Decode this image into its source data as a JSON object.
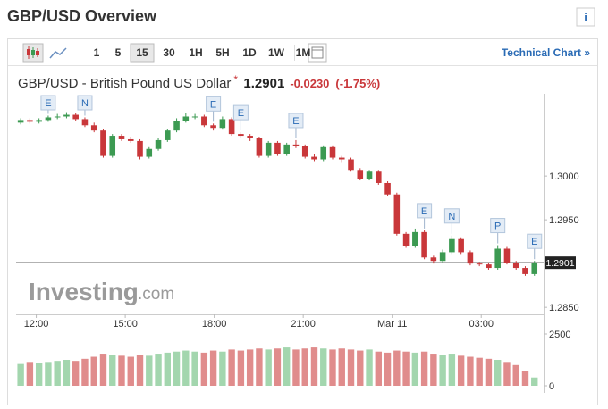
{
  "header": {
    "title": "GBP/USD Overview",
    "info": "i"
  },
  "toolbar": {
    "intervals": [
      "1",
      "5",
      "15",
      "30",
      "1H",
      "5H",
      "1D",
      "1W",
      "1M"
    ],
    "active": "15",
    "link": "Technical Chart »"
  },
  "quote": {
    "name": "GBP/USD - British Pound US Dollar",
    "price": "1.2901",
    "change": "-0.0230",
    "change_pct": "(-1.75%)"
  },
  "watermark": {
    "brand": "Investing",
    "suffix": ".com"
  },
  "chart_data": {
    "type": "candlestick",
    "open": [
      1.3061,
      1.3064,
      1.3062,
      1.3064,
      1.3067,
      1.3068,
      1.307,
      1.3065,
      1.3058,
      1.3052,
      1.3023,
      1.3046,
      1.3042,
      1.304,
      1.3022,
      1.3031,
      1.3041,
      1.3052,
      1.3063,
      1.3068,
      1.3068,
      1.3058,
      1.3055,
      1.3065,
      1.3048,
      1.3046,
      1.3043,
      1.3023,
      1.3038,
      1.3025,
      1.3036,
      1.3034,
      1.3022,
      1.3019,
      1.3033,
      1.3021,
      1.3019,
      1.3007,
      1.2997,
      1.3005,
      1.2992,
      1.2979,
      1.2934,
      1.292,
      1.2936,
      1.2907,
      1.2903,
      1.2913,
      1.2928,
      1.2913,
      1.29,
      1.2899,
      1.2895,
      1.2917,
      1.2901,
      1.2895,
      1.2888
    ],
    "high": [
      1.3066,
      1.3066,
      1.3066,
      1.3069,
      1.3071,
      1.3073,
      1.3072,
      1.3067,
      1.3061,
      1.3054,
      1.3048,
      1.3048,
      1.3045,
      1.3042,
      1.3033,
      1.3043,
      1.3054,
      1.3066,
      1.3072,
      1.3071,
      1.307,
      1.306,
      1.3068,
      1.3067,
      1.305,
      1.3048,
      1.3045,
      1.304,
      1.304,
      1.3038,
      1.3041,
      1.3036,
      1.3025,
      1.3035,
      1.3035,
      1.3023,
      1.3021,
      1.3009,
      1.3007,
      1.3007,
      1.2994,
      1.2981,
      1.2936,
      1.294,
      1.2938,
      1.2909,
      1.2916,
      1.2932,
      1.293,
      1.2915,
      1.2902,
      1.2901,
      1.2921,
      1.2919,
      1.2903,
      1.2897,
      1.2903
    ],
    "low": [
      1.3059,
      1.306,
      1.306,
      1.3062,
      1.3065,
      1.3066,
      1.3063,
      1.3056,
      1.305,
      1.3021,
      1.3021,
      1.304,
      1.3038,
      1.3019,
      1.302,
      1.3029,
      1.3039,
      1.305,
      1.3061,
      1.3065,
      1.3056,
      1.3052,
      1.3053,
      1.3046,
      1.3043,
      1.304,
      1.3021,
      1.3021,
      1.3023,
      1.3023,
      1.3032,
      1.302,
      1.3017,
      1.3017,
      1.3019,
      1.3016,
      1.3005,
      1.2995,
      1.2995,
      1.299,
      1.2977,
      1.2932,
      1.2918,
      1.2918,
      1.2905,
      1.29,
      1.2901,
      1.2911,
      1.2911,
      1.2898,
      1.2897,
      1.2893,
      1.2893,
      1.2899,
      1.2893,
      1.2886,
      1.2886
    ],
    "close": [
      1.3064,
      1.3062,
      1.3064,
      1.3067,
      1.3068,
      1.307,
      1.3065,
      1.3058,
      1.3052,
      1.3023,
      1.3046,
      1.3042,
      1.304,
      1.3022,
      1.3031,
      1.3041,
      1.3052,
      1.3063,
      1.3068,
      1.3068,
      1.3058,
      1.3055,
      1.3065,
      1.3048,
      1.3046,
      1.3043,
      1.3023,
      1.3038,
      1.3025,
      1.3036,
      1.3034,
      1.3022,
      1.3019,
      1.3033,
      1.3021,
      1.3019,
      1.3007,
      1.2997,
      1.3005,
      1.2992,
      1.2979,
      1.2934,
      1.292,
      1.2936,
      1.2907,
      1.2903,
      1.2913,
      1.2928,
      1.2913,
      1.29,
      1.2899,
      1.2895,
      1.2917,
      1.2901,
      1.2895,
      1.2888,
      1.2901
    ],
    "volume": [
      1050,
      1150,
      1100,
      1150,
      1200,
      1250,
      1200,
      1300,
      1400,
      1550,
      1500,
      1450,
      1400,
      1500,
      1450,
      1550,
      1600,
      1650,
      1700,
      1650,
      1600,
      1700,
      1650,
      1750,
      1700,
      1750,
      1800,
      1750,
      1800,
      1850,
      1750,
      1800,
      1850,
      1800,
      1750,
      1800,
      1750,
      1700,
      1750,
      1650,
      1600,
      1700,
      1650,
      1600,
      1650,
      1550,
      1500,
      1550,
      1450,
      1400,
      1350,
      1300,
      1250,
      1150,
      1000,
      700,
      400
    ],
    "up_color": "#3c9a52",
    "down_color": "#c9373a",
    "volume_up_color": "#a3d6ae",
    "volume_down_color": "#e08c8c",
    "xlim": [
      -0.5,
      57
    ],
    "xticks": [
      {
        "value": 1.7,
        "label": "12:00"
      },
      {
        "value": 11.4,
        "label": "15:00"
      },
      {
        "value": 21.1,
        "label": "18:00"
      },
      {
        "value": 30.8,
        "label": "21:00"
      },
      {
        "value": 40.5,
        "label": "Mar 11"
      },
      {
        "value": 50.2,
        "label": "03:00"
      }
    ],
    "ylim": [
      1.2842,
      1.3094
    ],
    "yticks": [
      {
        "value": 1.3,
        "label": "1.3000"
      },
      {
        "value": 1.295,
        "label": "1.2950"
      },
      {
        "value": 1.285,
        "label": "1.2850"
      }
    ],
    "y2lim": [
      0,
      2500
    ],
    "y2ticks": [
      2500,
      0
    ],
    "price_line": {
      "value": 1.2901,
      "label": "1.2901"
    },
    "events": [
      {
        "label": "E",
        "index": 3
      },
      {
        "label": "N",
        "index": 7
      },
      {
        "label": "E",
        "index": 21
      },
      {
        "label": "E",
        "index": 24
      },
      {
        "label": "E",
        "index": 30
      },
      {
        "label": "E",
        "index": 44
      },
      {
        "label": "N",
        "index": 47
      },
      {
        "label": "P",
        "index": 52
      },
      {
        "label": "E",
        "index": 56
      }
    ]
  }
}
